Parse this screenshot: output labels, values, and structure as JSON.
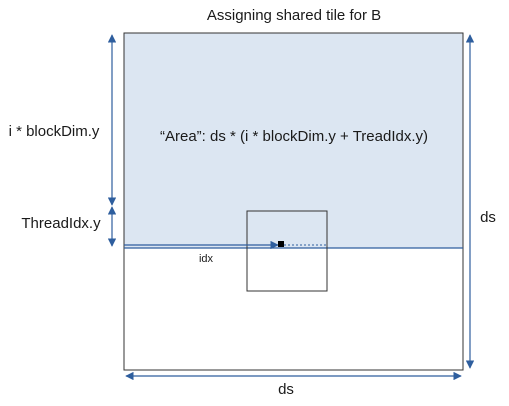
{
  "title": "Assigning shared tile for B",
  "labels": {
    "left_upper": "i * blockDim.y",
    "left_lower": "ThreadIdx.y",
    "area": "“Area”: ds * (i * blockDim.y + TreadIdx.y)",
    "idx": "idx",
    "right": "ds",
    "bottom": "ds"
  },
  "colors": {
    "shaded_region": "#dce6f2",
    "outline": "#333333",
    "arrow": "#2e5e9e",
    "text": "#1a1a1a",
    "point": "#000000"
  }
}
